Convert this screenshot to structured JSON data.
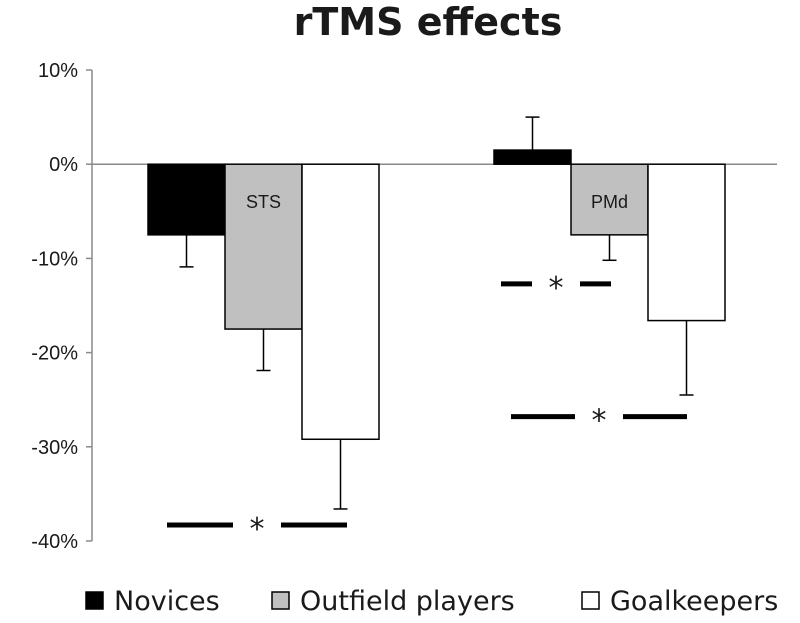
{
  "chart_data": {
    "type": "bar",
    "title": "rTMS effects",
    "xlabel": "",
    "ylabel": "",
    "ylim": [
      -40,
      10
    ],
    "ytick_step": 10,
    "ytick_labels": [
      "10%",
      "0%",
      "-10%",
      "-20%",
      "-30%",
      "-40%"
    ],
    "categories": [
      "STS",
      "PMd"
    ],
    "series": [
      {
        "name": "Novices",
        "values": [
          -7.5,
          1.5
        ],
        "errors": [
          3.4,
          3.5
        ],
        "color": "#000000"
      },
      {
        "name": "Outfield players",
        "values": [
          -17.5,
          -7.5
        ],
        "errors": [
          4.4,
          2.7
        ],
        "color": "#c0c0c0"
      },
      {
        "name": "Goalkeepers",
        "values": [
          -29.2,
          -16.6
        ],
        "errors": [
          7.4,
          7.9
        ],
        "color": "#ffffff"
      }
    ],
    "significance": [
      {
        "label": "*",
        "y": -38.3,
        "from": 0,
        "to": 0
      },
      {
        "label": "*",
        "y": -12.7,
        "from": 1,
        "to": 1
      },
      {
        "label": "*",
        "y": -26.8,
        "from": 1,
        "to": 1
      }
    ],
    "legend_position": "bottom",
    "grid": false
  }
}
